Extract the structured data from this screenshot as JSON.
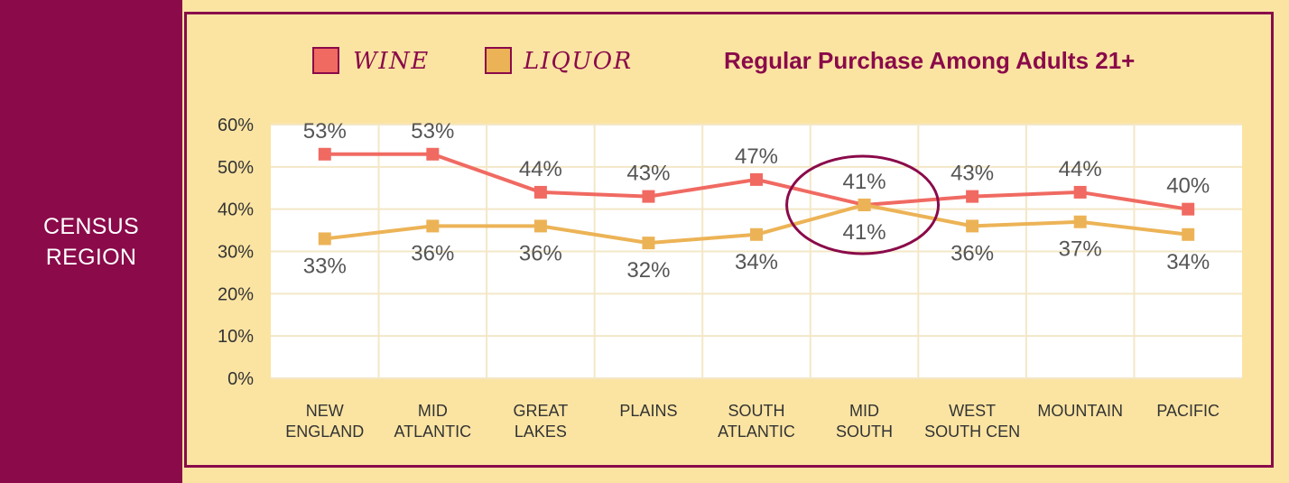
{
  "side_label": "CENSUS\nREGION",
  "colors": {
    "wine": "#f06a62",
    "liquor": "#ecb356",
    "accent": "#8a0a4a",
    "background": "#fbe4a2",
    "plot": "#ffffff"
  },
  "chart_data": {
    "type": "line",
    "title": "Regular Purchase Among Adults 21+",
    "categories": [
      [
        "NEW",
        "ENGLAND"
      ],
      [
        "MID",
        "ATLANTIC"
      ],
      [
        "GREAT",
        "LAKES"
      ],
      [
        "PLAINS"
      ],
      [
        "SOUTH",
        "ATLANTIC"
      ],
      [
        "MID",
        "SOUTH"
      ],
      [
        "WEST",
        "SOUTH CEN"
      ],
      [
        "MOUNTAIN"
      ],
      [
        "PACIFIC"
      ]
    ],
    "series": [
      {
        "name": "WINE",
        "values": [
          53,
          53,
          44,
          43,
          47,
          41,
          43,
          44,
          40
        ],
        "labels": [
          "53%",
          "53%",
          "44%",
          "43%",
          "47%",
          "41%",
          "43%",
          "44%",
          "40%"
        ]
      },
      {
        "name": "LIQUOR",
        "values": [
          33,
          36,
          36,
          32,
          34,
          41,
          36,
          37,
          34
        ],
        "labels": [
          "33%",
          "36%",
          "36%",
          "32%",
          "34%",
          "41%",
          "36%",
          "37%",
          "34%"
        ]
      }
    ],
    "yticks": [
      "0%",
      "10%",
      "20%",
      "30%",
      "40%",
      "50%",
      "60%"
    ],
    "ylim": [
      0,
      60
    ],
    "grid": true,
    "legend": "top-left",
    "annotation": "circle around MID SOUTH"
  }
}
